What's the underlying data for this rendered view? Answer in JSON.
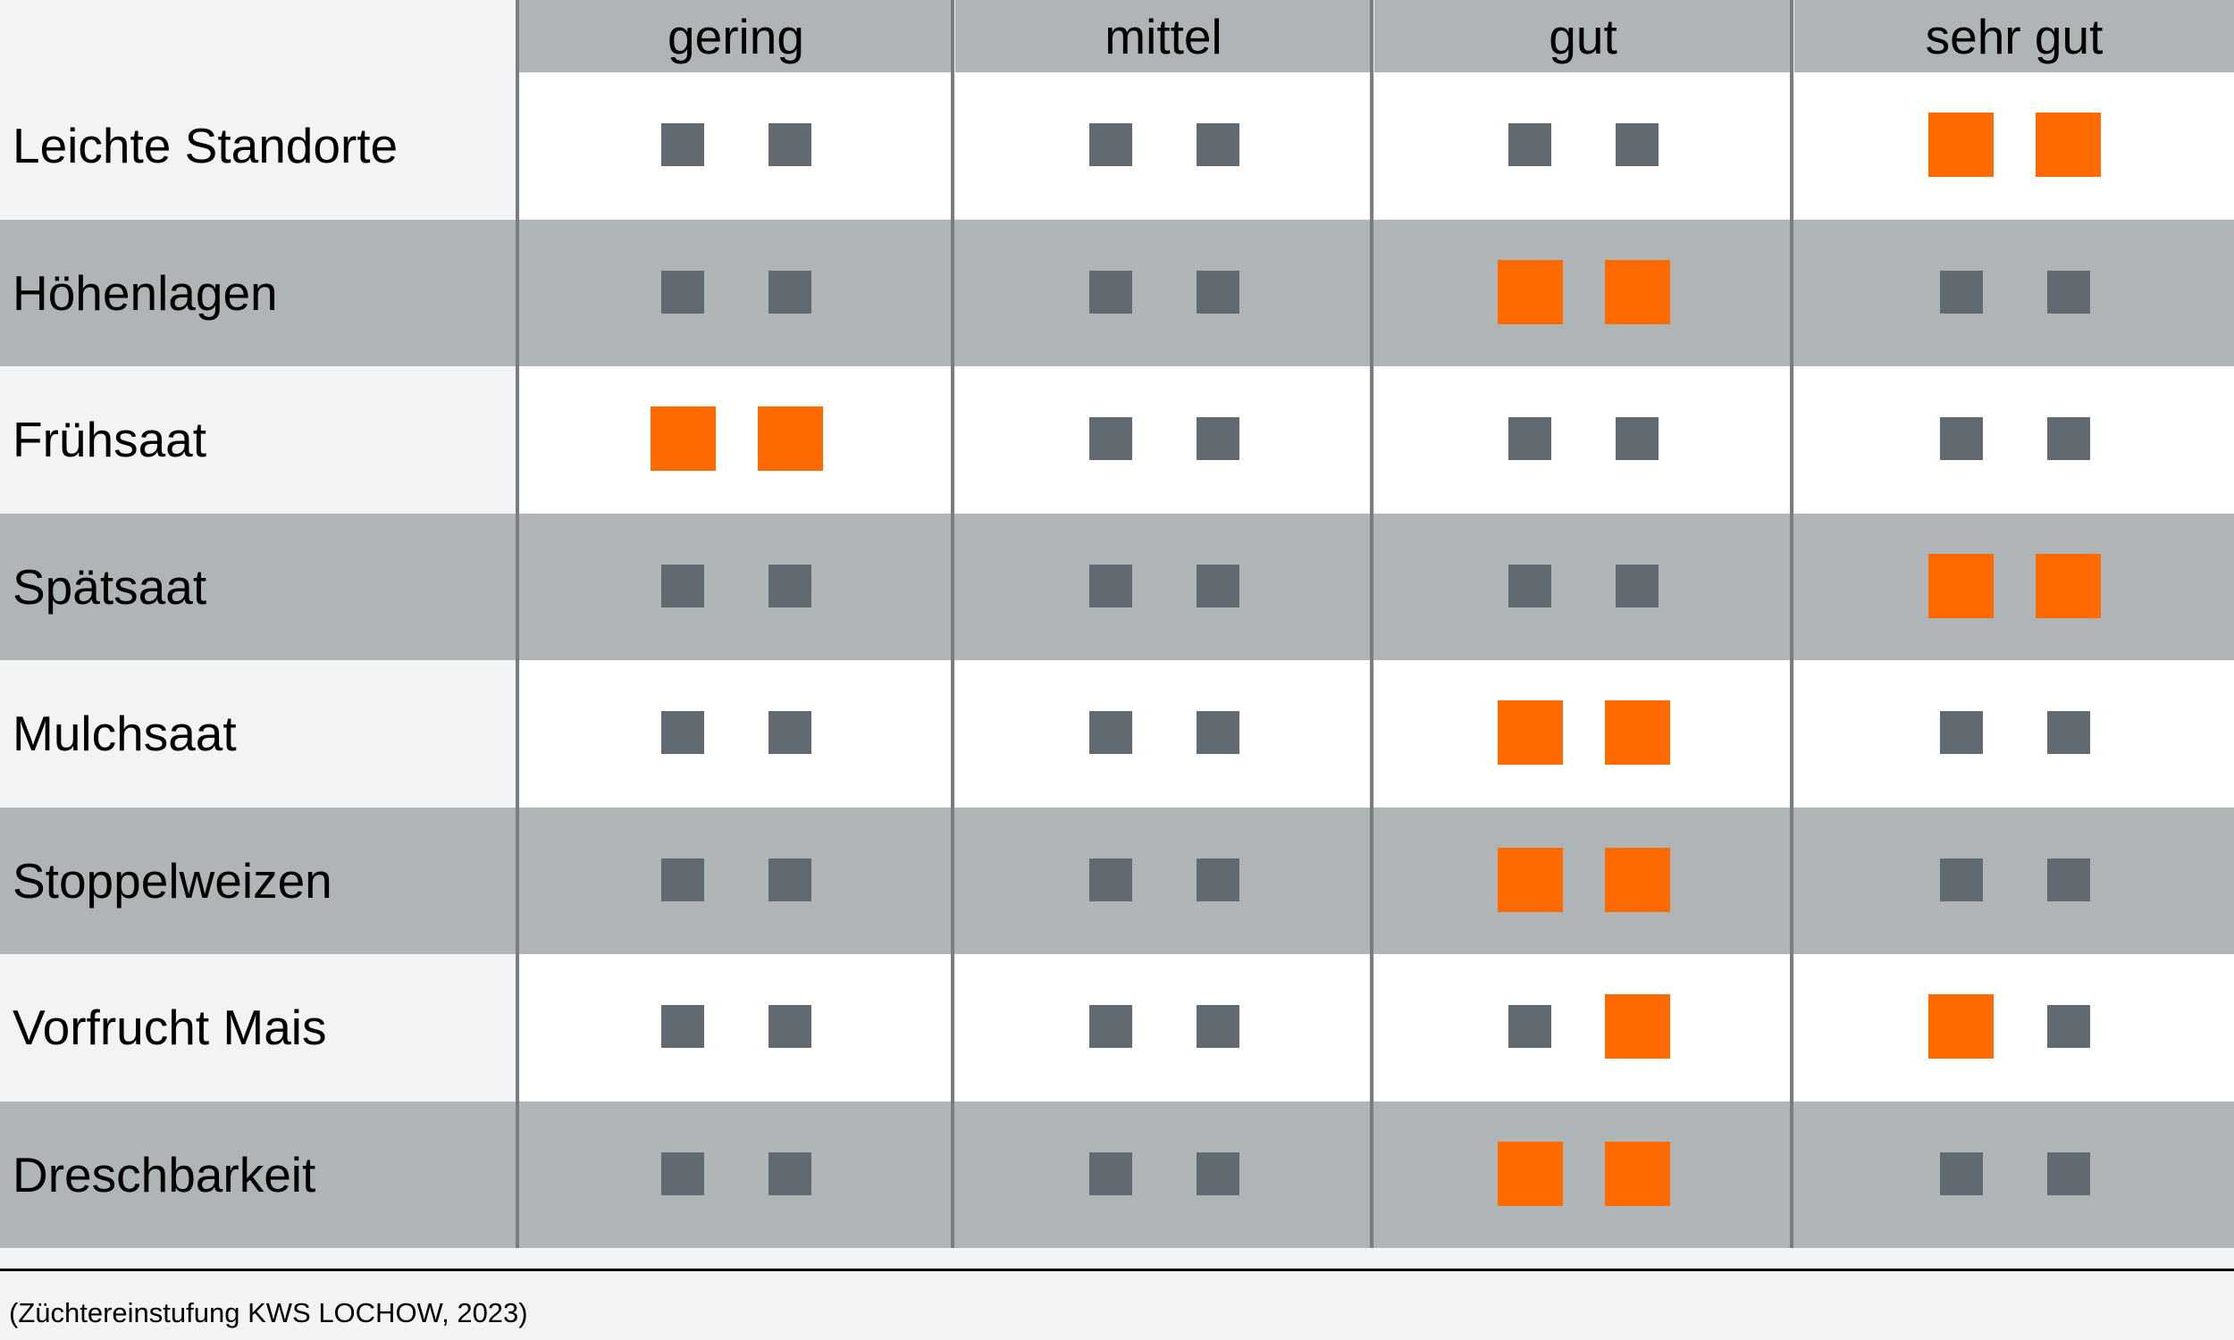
{
  "chart_data": {
    "type": "table",
    "columns": [
      "gering",
      "mittel",
      "gut",
      "sehr gut"
    ],
    "rows": [
      {
        "label": "Leichte Standorte",
        "ratings": [
          [
            0,
            0
          ],
          [
            0,
            0
          ],
          [
            0,
            0
          ],
          [
            1,
            1
          ]
        ]
      },
      {
        "label": "Höhenlagen",
        "ratings": [
          [
            0,
            0
          ],
          [
            0,
            0
          ],
          [
            1,
            1
          ],
          [
            0,
            0
          ]
        ]
      },
      {
        "label": "Frühsaat",
        "ratings": [
          [
            1,
            1
          ],
          [
            0,
            0
          ],
          [
            0,
            0
          ],
          [
            0,
            0
          ]
        ]
      },
      {
        "label": "Spätsaat",
        "ratings": [
          [
            0,
            0
          ],
          [
            0,
            0
          ],
          [
            0,
            0
          ],
          [
            1,
            1
          ]
        ]
      },
      {
        "label": "Mulchsaat",
        "ratings": [
          [
            0,
            0
          ],
          [
            0,
            0
          ],
          [
            1,
            1
          ],
          [
            0,
            0
          ]
        ]
      },
      {
        "label": "Stoppelweizen",
        "ratings": [
          [
            0,
            0
          ],
          [
            0,
            0
          ],
          [
            1,
            1
          ],
          [
            0,
            0
          ]
        ]
      },
      {
        "label": "Vorfrucht Mais",
        "ratings": [
          [
            0,
            0
          ],
          [
            0,
            0
          ],
          [
            0,
            1
          ],
          [
            1,
            0
          ]
        ]
      },
      {
        "label": "Dreschbarkeit",
        "ratings": [
          [
            0,
            0
          ],
          [
            0,
            0
          ],
          [
            1,
            1
          ],
          [
            0,
            0
          ]
        ]
      }
    ],
    "source": "(Züchtereinstufung KWS LOCHOW, 2023)"
  },
  "colors": {
    "active": "#ff6a00",
    "inactive": "#606a70",
    "band_dark": "#afb4b6",
    "band_light": "#ffffff",
    "divider": "#7a7d7f"
  }
}
